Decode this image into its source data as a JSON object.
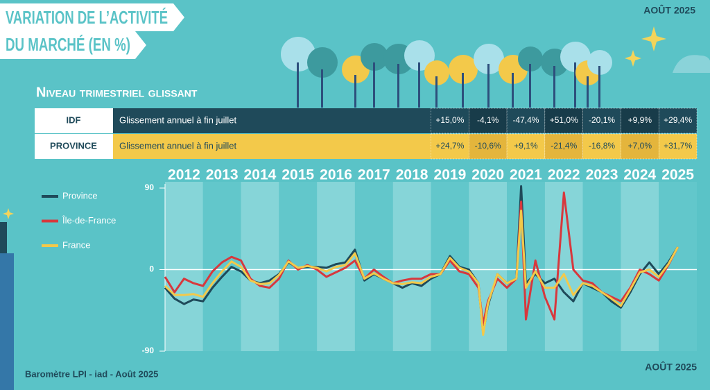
{
  "header": {
    "title_line1": "VARIATION DE L’ACTIVITÉ",
    "title_line2": "DU MARCHÉ (EN %)",
    "date": "AOÛT 2025"
  },
  "subtitle": "Niveau trimestriel glissant",
  "table": {
    "rows": [
      {
        "label": "IDF",
        "description": "Glissement annuel à fin juillet",
        "values": [
          "+15,0%",
          "-4,1%",
          "-47,4%",
          "+51,0%",
          "-20,1%",
          "+9,9%",
          "+29,4%"
        ]
      },
      {
        "label": "PROVINCE",
        "description": "Glissement annuel à fin juillet",
        "values": [
          "+24,7%",
          "-10,6%",
          "+9,1%",
          "-21,4%",
          "-16,8%",
          "+7,0%",
          "+31,7%"
        ]
      }
    ]
  },
  "footer": {
    "source": "Baromètre LPI - iad - Août  2025",
    "date": "AOÛT 2025"
  },
  "chart_data": {
    "type": "line",
    "categories": [
      "2012",
      "2013",
      "2014",
      "2015",
      "2016",
      "2017",
      "2018",
      "2019",
      "2020",
      "2021",
      "2022",
      "2023",
      "2024",
      "2025"
    ],
    "xlim": [
      2012,
      2026
    ],
    "ylim": [
      -90,
      90
    ],
    "yticks": [
      -90,
      0,
      90
    ],
    "legend": "left",
    "x": [
      2012.0,
      2012.25,
      2012.5,
      2012.75,
      2013.0,
      2013.25,
      2013.5,
      2013.75,
      2014.0,
      2014.25,
      2014.5,
      2014.75,
      2015.0,
      2015.25,
      2015.5,
      2015.75,
      2016.0,
      2016.25,
      2016.5,
      2016.75,
      2017.0,
      2017.25,
      2017.5,
      2017.75,
      2018.0,
      2018.25,
      2018.5,
      2018.75,
      2019.0,
      2019.25,
      2019.5,
      2019.75,
      2020.0,
      2020.25,
      2020.375,
      2020.5,
      2020.75,
      2021.0,
      2021.25,
      2021.375,
      2021.5,
      2021.75,
      2022.0,
      2022.25,
      2022.5,
      2022.75,
      2023.0,
      2023.25,
      2023.5,
      2023.75,
      2024.0,
      2024.25,
      2024.5,
      2024.75,
      2025.0,
      2025.25,
      2025.5
    ],
    "series": [
      {
        "name": "Province",
        "color": "#1f4a5a",
        "values": [
          -20,
          -32,
          -38,
          -33,
          -35,
          -20,
          -8,
          3,
          -2,
          -12,
          -15,
          -12,
          -5,
          8,
          2,
          3,
          3,
          2,
          6,
          8,
          22,
          -12,
          -5,
          -10,
          -15,
          -20,
          -15,
          -18,
          -10,
          -5,
          15,
          3,
          0,
          -15,
          -70,
          -40,
          -5,
          -15,
          -10,
          92,
          -15,
          -5,
          -15,
          -10,
          -25,
          -35,
          -15,
          -20,
          -25,
          -35,
          -42,
          -25,
          -5,
          8,
          -5,
          8,
          25
        ]
      },
      {
        "name": "Île-de-France",
        "color": "#d7383d",
        "values": [
          -8,
          -25,
          -10,
          -15,
          -18,
          -2,
          8,
          14,
          10,
          -10,
          -18,
          -20,
          -10,
          10,
          0,
          5,
          0,
          -8,
          -3,
          2,
          10,
          -10,
          0,
          -8,
          -15,
          -12,
          -10,
          -10,
          -5,
          -5,
          10,
          -2,
          -5,
          -20,
          -60,
          -35,
          -10,
          -20,
          -10,
          75,
          -55,
          10,
          -30,
          -55,
          85,
          0,
          -12,
          -15,
          -25,
          -30,
          -35,
          -20,
          0,
          -5,
          -12,
          5,
          25
        ]
      },
      {
        "name": "France",
        "color": "#f3c94a",
        "values": [
          -18,
          -28,
          -28,
          -27,
          -30,
          -15,
          -2,
          9,
          3,
          -12,
          -16,
          -15,
          -6,
          9,
          2,
          4,
          2,
          -2,
          3,
          5,
          18,
          -10,
          -4,
          -10,
          -15,
          -16,
          -14,
          -15,
          -8,
          -5,
          13,
          2,
          -2,
          -15,
          -72,
          -38,
          -5,
          -15,
          -10,
          65,
          -20,
          -2,
          -20,
          -20,
          -5,
          -28,
          -15,
          -18,
          -25,
          -32,
          -40,
          -22,
          -3,
          0,
          -8,
          6,
          25
        ]
      }
    ]
  }
}
